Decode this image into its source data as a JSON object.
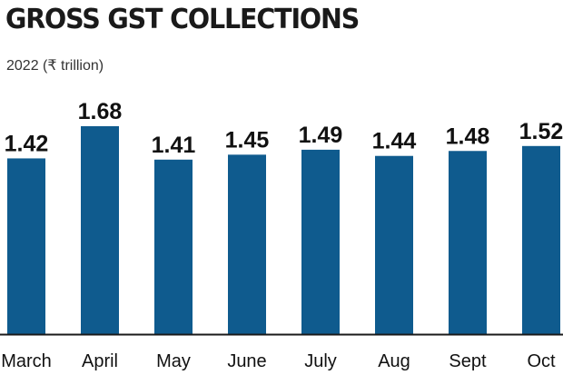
{
  "colors": {
    "bar": "#0f5b8e",
    "baseline": "#1a1a1a",
    "text": "#111111"
  },
  "chart_data": {
    "type": "bar",
    "title": "GROSS GST COLLECTIONS",
    "subtitle": "2022 (₹ trillion)",
    "categories": [
      "March",
      "April",
      "May",
      "June",
      "July",
      "Aug",
      "Sept",
      "Oct"
    ],
    "values": [
      1.42,
      1.68,
      1.41,
      1.45,
      1.49,
      1.44,
      1.48,
      1.52
    ],
    "value_labels": [
      "1.42",
      "1.68",
      "1.41",
      "1.45",
      "1.49",
      "1.44",
      "1.48",
      "1.52"
    ],
    "ylim": [
      0,
      1.68
    ],
    "grid": false,
    "legend": "none"
  }
}
